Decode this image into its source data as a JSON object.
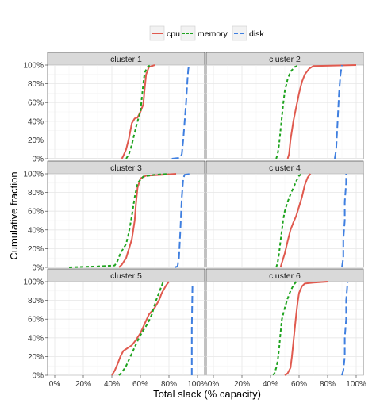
{
  "chart_data": {
    "type": "line",
    "subtype": "faceted cumulative distribution (ECDF)",
    "xlabel": "Total slack (% capacity)",
    "ylabel": "Cumulative fraction",
    "xlim": [
      -0.05,
      1.05
    ],
    "ylim": [
      0,
      1
    ],
    "x_ticks": [
      0,
      0.2,
      0.4,
      0.6,
      0.8,
      1.0
    ],
    "x_tick_labels": [
      "0%",
      "20%",
      "40%",
      "60%",
      "80%",
      "100%"
    ],
    "y_ticks": [
      0,
      0.2,
      0.4,
      0.6,
      0.8,
      1.0
    ],
    "y_tick_labels": [
      "0%",
      "20%",
      "40%",
      "60%",
      "80%",
      "100%"
    ],
    "grid": true,
    "legend_position": "top",
    "legend": [
      {
        "name": "cpu",
        "color": "#e05a4f",
        "dash": "solid"
      },
      {
        "name": "memory",
        "color": "#1fa31f",
        "dash": "dashed"
      },
      {
        "name": "disk",
        "color": "#3f7fe0",
        "dash": "long-dashed"
      }
    ],
    "panels": [
      {
        "label": "cluster 1",
        "series": [
          {
            "name": "cpu",
            "points": [
              [
                0.47,
                0
              ],
              [
                0.48,
                0.03
              ],
              [
                0.5,
                0.1
              ],
              [
                0.52,
                0.22
              ],
              [
                0.54,
                0.38
              ],
              [
                0.56,
                0.43
              ],
              [
                0.58,
                0.44
              ],
              [
                0.6,
                0.5
              ],
              [
                0.62,
                0.58
              ],
              [
                0.63,
                0.75
              ],
              [
                0.64,
                0.9
              ],
              [
                0.66,
                0.98
              ],
              [
                0.7,
                1.0
              ]
            ]
          },
          {
            "name": "memory",
            "points": [
              [
                0.5,
                0
              ],
              [
                0.52,
                0.05
              ],
              [
                0.54,
                0.15
              ],
              [
                0.56,
                0.28
              ],
              [
                0.58,
                0.4
              ],
              [
                0.6,
                0.5
              ],
              [
                0.61,
                0.65
              ],
              [
                0.62,
                0.8
              ],
              [
                0.63,
                0.92
              ],
              [
                0.65,
                0.98
              ],
              [
                0.67,
                1.0
              ]
            ]
          },
          {
            "name": "disk",
            "points": [
              [
                0.82,
                0
              ],
              [
                0.88,
                0.01
              ],
              [
                0.89,
                0.05
              ],
              [
                0.9,
                0.2
              ],
              [
                0.91,
                0.4
              ],
              [
                0.92,
                0.6
              ],
              [
                0.93,
                0.85
              ],
              [
                0.935,
                0.95
              ],
              [
                0.94,
                1.0
              ]
            ]
          }
        ]
      },
      {
        "label": "cluster 2",
        "series": [
          {
            "name": "cpu",
            "points": [
              [
                0.52,
                0
              ],
              [
                0.53,
                0.05
              ],
              [
                0.54,
                0.2
              ],
              [
                0.56,
                0.4
              ],
              [
                0.58,
                0.55
              ],
              [
                0.6,
                0.7
              ],
              [
                0.62,
                0.82
              ],
              [
                0.64,
                0.9
              ],
              [
                0.67,
                0.96
              ],
              [
                0.7,
                0.99
              ],
              [
                1.0,
                1.0
              ]
            ]
          },
          {
            "name": "memory",
            "points": [
              [
                0.44,
                0
              ],
              [
                0.45,
                0.05
              ],
              [
                0.46,
                0.15
              ],
              [
                0.47,
                0.3
              ],
              [
                0.48,
                0.45
              ],
              [
                0.49,
                0.6
              ],
              [
                0.5,
                0.72
              ],
              [
                0.52,
                0.85
              ],
              [
                0.54,
                0.93
              ],
              [
                0.57,
                0.98
              ],
              [
                0.6,
                1.0
              ]
            ]
          },
          {
            "name": "disk",
            "points": [
              [
                0.85,
                0
              ],
              [
                0.86,
                0.1
              ],
              [
                0.87,
                0.4
              ],
              [
                0.88,
                0.7
              ],
              [
                0.89,
                0.9
              ],
              [
                0.9,
                1.0
              ]
            ]
          }
        ]
      },
      {
        "label": "cluster 3",
        "series": [
          {
            "name": "cpu",
            "points": [
              [
                0.45,
                0
              ],
              [
                0.47,
                0.03
              ],
              [
                0.5,
                0.1
              ],
              [
                0.52,
                0.2
              ],
              [
                0.54,
                0.3
              ],
              [
                0.56,
                0.5
              ],
              [
                0.57,
                0.7
              ],
              [
                0.58,
                0.85
              ],
              [
                0.6,
                0.95
              ],
              [
                0.64,
                0.98
              ],
              [
                0.75,
                0.99
              ],
              [
                0.85,
                1.0
              ]
            ]
          },
          {
            "name": "memory",
            "points": [
              [
                0.1,
                0
              ],
              [
                0.3,
                0.01
              ],
              [
                0.42,
                0.02
              ],
              [
                0.44,
                0.07
              ],
              [
                0.46,
                0.15
              ],
              [
                0.5,
                0.25
              ],
              [
                0.52,
                0.38
              ],
              [
                0.54,
                0.55
              ],
              [
                0.56,
                0.75
              ],
              [
                0.58,
                0.9
              ],
              [
                0.62,
                0.97
              ],
              [
                0.7,
                0.99
              ],
              [
                0.8,
                1.0
              ]
            ]
          },
          {
            "name": "disk",
            "points": [
              [
                0.84,
                0
              ],
              [
                0.86,
                0.01
              ],
              [
                0.87,
                0.1
              ],
              [
                0.88,
                0.4
              ],
              [
                0.89,
                0.75
              ],
              [
                0.9,
                0.95
              ],
              [
                0.91,
                0.99
              ],
              [
                0.95,
                1.0
              ]
            ]
          }
        ]
      },
      {
        "label": "cluster 4",
        "series": [
          {
            "name": "cpu",
            "points": [
              [
                0.47,
                0
              ],
              [
                0.48,
                0.05
              ],
              [
                0.5,
                0.15
              ],
              [
                0.52,
                0.28
              ],
              [
                0.54,
                0.4
              ],
              [
                0.56,
                0.48
              ],
              [
                0.58,
                0.55
              ],
              [
                0.6,
                0.65
              ],
              [
                0.62,
                0.75
              ],
              [
                0.64,
                0.88
              ],
              [
                0.66,
                0.96
              ],
              [
                0.68,
                1.0
              ]
            ]
          },
          {
            "name": "memory",
            "points": [
              [
                0.44,
                0
              ],
              [
                0.45,
                0.05
              ],
              [
                0.46,
                0.15
              ],
              [
                0.47,
                0.28
              ],
              [
                0.48,
                0.4
              ],
              [
                0.49,
                0.52
              ],
              [
                0.5,
                0.6
              ],
              [
                0.52,
                0.7
              ],
              [
                0.54,
                0.78
              ],
              [
                0.56,
                0.85
              ],
              [
                0.58,
                0.92
              ],
              [
                0.6,
                0.98
              ],
              [
                0.62,
                1.0
              ]
            ]
          },
          {
            "name": "disk",
            "points": [
              [
                0.9,
                0
              ],
              [
                0.91,
                0.1
              ],
              [
                0.91,
                0.3
              ],
              [
                0.92,
                0.5
              ],
              [
                0.92,
                0.7
              ],
              [
                0.93,
                0.9
              ],
              [
                0.93,
                1.0
              ]
            ]
          }
        ]
      },
      {
        "label": "cluster 5",
        "series": [
          {
            "name": "cpu",
            "points": [
              [
                0.4,
                0
              ],
              [
                0.42,
                0.05
              ],
              [
                0.44,
                0.12
              ],
              [
                0.46,
                0.2
              ],
              [
                0.48,
                0.26
              ],
              [
                0.5,
                0.28
              ],
              [
                0.52,
                0.3
              ],
              [
                0.54,
                0.32
              ],
              [
                0.57,
                0.38
              ],
              [
                0.6,
                0.45
              ],
              [
                0.63,
                0.55
              ],
              [
                0.66,
                0.65
              ],
              [
                0.7,
                0.72
              ],
              [
                0.73,
                0.8
              ],
              [
                0.75,
                0.88
              ],
              [
                0.78,
                0.96
              ],
              [
                0.8,
                1.0
              ]
            ]
          },
          {
            "name": "memory",
            "points": [
              [
                0.45,
                0
              ],
              [
                0.47,
                0.03
              ],
              [
                0.5,
                0.1
              ],
              [
                0.53,
                0.2
              ],
              [
                0.56,
                0.3
              ],
              [
                0.59,
                0.4
              ],
              [
                0.62,
                0.48
              ],
              [
                0.65,
                0.55
              ],
              [
                0.68,
                0.65
              ],
              [
                0.71,
                0.8
              ],
              [
                0.74,
                0.92
              ],
              [
                0.76,
                1.0
              ]
            ]
          },
          {
            "name": "disk",
            "points": [
              [
                0.96,
                0
              ],
              [
                0.96,
                0.5
              ],
              [
                0.965,
                1.0
              ]
            ]
          }
        ]
      },
      {
        "label": "cluster 6",
        "series": [
          {
            "name": "cpu",
            "points": [
              [
                0.5,
                0
              ],
              [
                0.52,
                0.02
              ],
              [
                0.54,
                0.08
              ],
              [
                0.55,
                0.2
              ],
              [
                0.56,
                0.35
              ],
              [
                0.57,
                0.5
              ],
              [
                0.58,
                0.65
              ],
              [
                0.59,
                0.78
              ],
              [
                0.6,
                0.88
              ],
              [
                0.62,
                0.95
              ],
              [
                0.64,
                0.98
              ],
              [
                0.7,
                0.99
              ],
              [
                0.8,
                1.0
              ]
            ]
          },
          {
            "name": "memory",
            "points": [
              [
                0.42,
                0
              ],
              [
                0.43,
                0.03
              ],
              [
                0.44,
                0.08
              ],
              [
                0.45,
                0.15
              ],
              [
                0.46,
                0.28
              ],
              [
                0.47,
                0.45
              ],
              [
                0.48,
                0.6
              ],
              [
                0.5,
                0.72
              ],
              [
                0.52,
                0.82
              ],
              [
                0.54,
                0.9
              ],
              [
                0.56,
                0.96
              ],
              [
                0.58,
                1.0
              ]
            ]
          },
          {
            "name": "disk",
            "points": [
              [
                0.9,
                0
              ],
              [
                0.91,
                0.05
              ],
              [
                0.92,
                0.2
              ],
              [
                0.92,
                0.4
              ],
              [
                0.93,
                0.6
              ],
              [
                0.93,
                0.8
              ],
              [
                0.94,
                1.0
              ]
            ]
          }
        ]
      }
    ]
  }
}
